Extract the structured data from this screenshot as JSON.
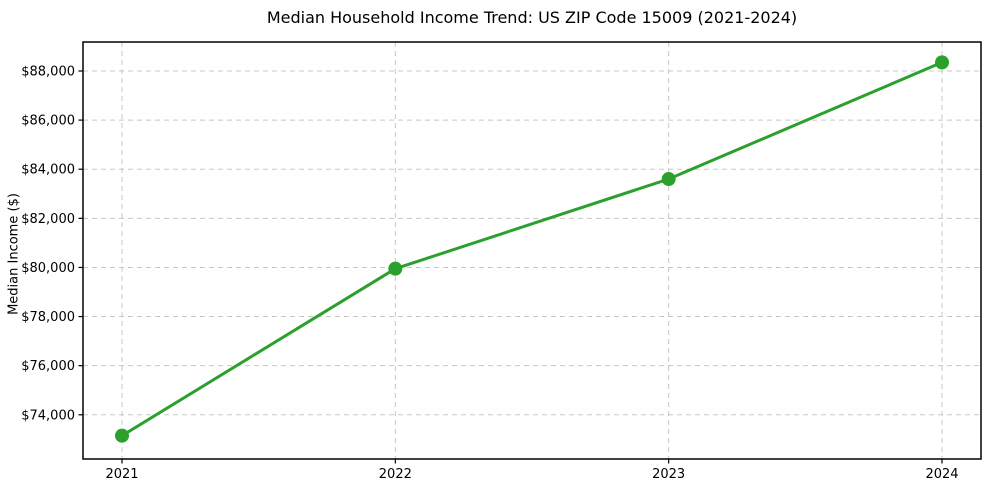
{
  "chart_data": {
    "type": "line",
    "title": "Median Household Income Trend: US ZIP Code 15009 (2021-2024)",
    "xlabel": "",
    "ylabel": "Median Income ($)",
    "x": [
      2021,
      2022,
      2023,
      2024
    ],
    "xtick_labels": [
      "2021",
      "2022",
      "2023",
      "2024"
    ],
    "series": [
      {
        "name": "Median Household Income",
        "values": [
          73150,
          79950,
          83600,
          88350
        ]
      }
    ],
    "yticks": [
      74000,
      76000,
      78000,
      80000,
      82000,
      84000,
      86000,
      88000
    ],
    "ytick_labels": [
      "$74,000",
      "$76,000",
      "$78,000",
      "$80,000",
      "$82,000",
      "$84,000",
      "$86,000",
      "$88,000"
    ],
    "ylim": [
      72200,
      89180
    ],
    "grid": true,
    "legend": "none",
    "colors": {
      "line": "#2ca02c",
      "marker": "#2ca02c",
      "grid": "#c8c8c8",
      "axis_frame": "#000000",
      "tick_text": "#000000",
      "background": "#ffffff"
    }
  }
}
